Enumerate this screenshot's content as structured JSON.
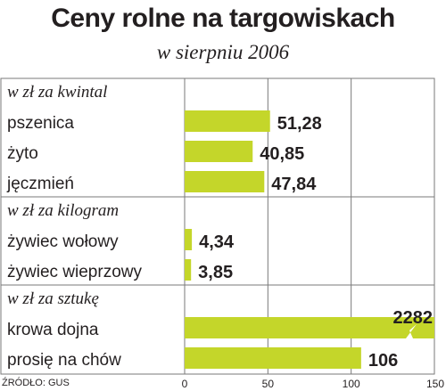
{
  "title": "Ceny rolne na targowiskach",
  "subtitle": "w sierpniu 2006",
  "source": "ŹRÓDŁO: GUS",
  "colors": {
    "bar": "#c4d62a",
    "text": "#231f20",
    "rule": "#7a7a7a",
    "band": "#dcdcdc"
  },
  "chart_data": {
    "type": "bar",
    "orientation": "horizontal",
    "xlim": [
      0,
      150
    ],
    "x_ticks": [
      "0",
      "50",
      "100",
      "150"
    ],
    "grid": true,
    "groups": [
      {
        "label": "w zł za kwintal",
        "rows": [
          {
            "category": "pszenica",
            "value": 51.28,
            "value_label": "51,28"
          },
          {
            "category": "żyto",
            "value": 40.85,
            "value_label": "40,85"
          },
          {
            "category": "jęczmień",
            "value": 47.84,
            "value_label": "47,84"
          }
        ]
      },
      {
        "label": "w zł za kilogram",
        "rows": [
          {
            "category": "żywiec wołowy",
            "value": 4.34,
            "value_label": "4,34"
          },
          {
            "category": "żywiec wieprzowy",
            "value": 3.85,
            "value_label": "3,85"
          }
        ]
      },
      {
        "label": "w zł za sztukę",
        "rows": [
          {
            "category": "krowa dojna",
            "value": 2282,
            "value_label": "2282",
            "axis_break": true
          },
          {
            "category": "prosię na chów",
            "value": 106,
            "value_label": "106"
          }
        ]
      }
    ]
  }
}
